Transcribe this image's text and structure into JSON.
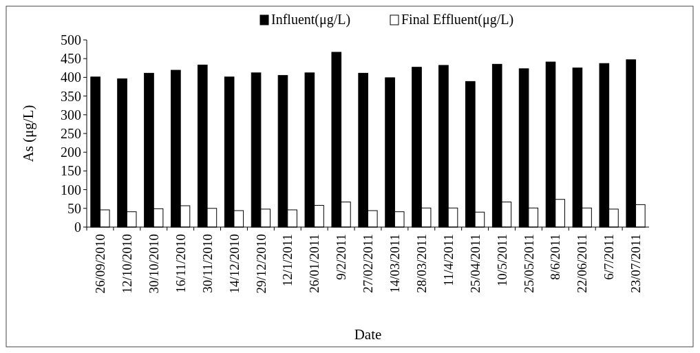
{
  "chart_data": {
    "type": "bar",
    "xlabel": "Date",
    "ylabel": "As (μg/L)",
    "categories": [
      "26/09/2010",
      "12/10/2010",
      "30/10/2010",
      "16/11/2010",
      "30/11/2010",
      "14/12/2010",
      "29/12/2010",
      "12/1/2011",
      "26/01/2011",
      "9/2/2011",
      "27/02/2011",
      "14/03/2011",
      "28/03/2011",
      "11/4/2011",
      "25/04/2011",
      "10/5/2011",
      "25/05/2011",
      "8/6/2011",
      "22/06/2011",
      "6/7/2011",
      "23/07/2011"
    ],
    "series": [
      {
        "name": "Influent(μg/L)",
        "color": "#000000",
        "values": [
          401,
          396,
          411,
          419,
          433,
          401,
          412,
          405,
          412,
          467,
          411,
          399,
          427,
          432,
          389,
          435,
          423,
          441,
          425,
          437,
          447
        ]
      },
      {
        "name": "Final Effluent(μg/L)",
        "color": "#ffffff",
        "values": [
          46,
          41,
          49,
          57,
          50,
          44,
          48,
          46,
          58,
          67,
          44,
          41,
          51,
          51,
          40,
          67,
          51,
          74,
          51,
          48,
          60
        ]
      }
    ],
    "ylim": [
      0,
      500
    ],
    "yticks": [
      0,
      50,
      100,
      150,
      200,
      250,
      300,
      350,
      400,
      450,
      500
    ],
    "grid": false,
    "legend": "top"
  }
}
